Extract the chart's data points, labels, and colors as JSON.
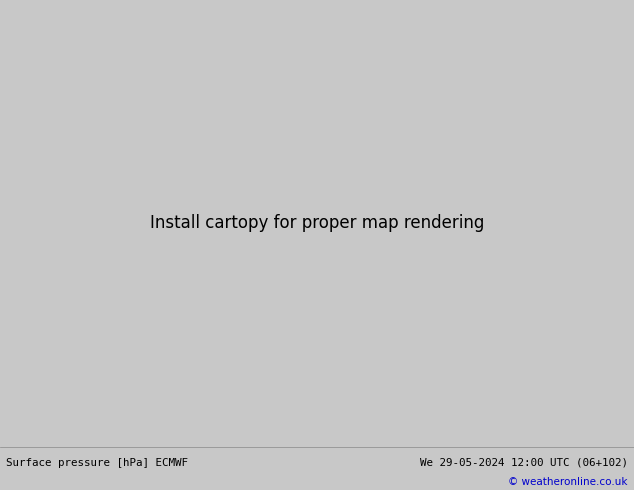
{
  "title_left": "Surface pressure [hPa] ECMWF",
  "title_right": "We 29-05-2024 12:00 UTC (06+102)",
  "copyright": "© weatheronline.co.uk",
  "bg_color": "#c8c8c8",
  "land_color": "#aaddaa",
  "bottom_bar_color": "#e0e0e0",
  "bottom_text_color": "#000000",
  "fig_width": 6.34,
  "fig_height": 4.9,
  "dpi": 100,
  "red": "#cc0000",
  "blue": "#0000cc",
  "black": "#000000",
  "map_extent": [
    -170,
    -50,
    20,
    80
  ]
}
